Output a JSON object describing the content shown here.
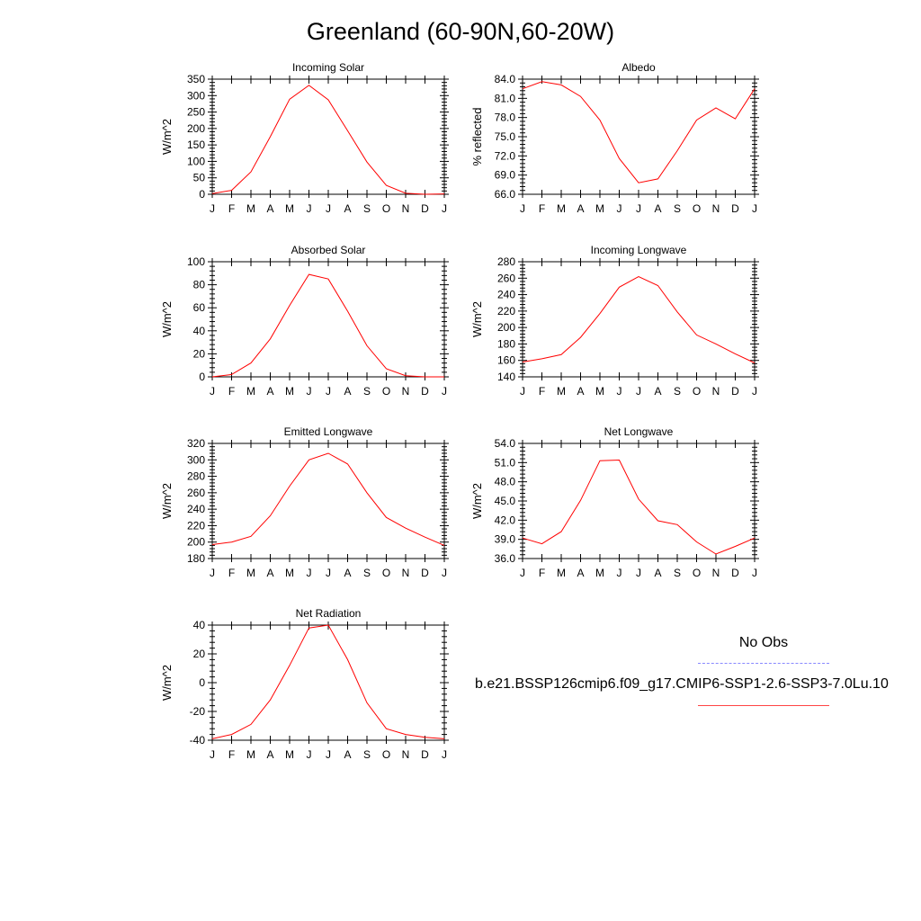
{
  "title": "Greenland (60-90N,60-20W)",
  "legend": {
    "obs_label": "No Obs",
    "case_label": "b.e21.BSSP126cmip6.f09_g17.CMIP6-SSP1-2.6-SSP3-7.0Lu.10",
    "obs_color": "#8888ff",
    "case_color": "#ff0000"
  },
  "chart_data": [
    {
      "type": "line",
      "title": "Incoming Solar",
      "ylabel": "W/m^2",
      "x": [
        "J",
        "F",
        "M",
        "A",
        "M",
        "J",
        "J",
        "A",
        "S",
        "O",
        "N",
        "D",
        "J"
      ],
      "ylim": [
        0,
        350
      ],
      "yticks": [
        0,
        50,
        100,
        150,
        200,
        250,
        300,
        350
      ],
      "ytick_labels": [
        "0",
        "50",
        "100",
        "150",
        "200",
        "250",
        "300",
        "350"
      ],
      "series": [
        {
          "values": [
            2,
            12,
            68,
            175,
            289,
            331,
            287,
            193,
            98,
            27,
            3,
            0,
            1
          ],
          "color": "#ff0000"
        }
      ]
    },
    {
      "type": "line",
      "title": "Albedo",
      "ylabel": "% reflected",
      "x": [
        "J",
        "F",
        "M",
        "A",
        "M",
        "J",
        "J",
        "A",
        "S",
        "O",
        "N",
        "D",
        "J"
      ],
      "ylim": [
        66,
        84
      ],
      "yticks": [
        66,
        69,
        72,
        75,
        78,
        81,
        84
      ],
      "ytick_labels": [
        "66.0",
        "69.0",
        "72.0",
        "75.0",
        "78.0",
        "81.0",
        "84.0"
      ],
      "series": [
        {
          "values": [
            82.5,
            83.6,
            83.1,
            81.3,
            77.6,
            71.6,
            67.8,
            68.4,
            72.8,
            77.6,
            79.5,
            77.8,
            82.5
          ],
          "color": "#ff0000"
        }
      ]
    },
    {
      "type": "line",
      "title": "Absorbed Solar",
      "ylabel": "W/m^2",
      "x": [
        "J",
        "F",
        "M",
        "A",
        "M",
        "J",
        "J",
        "A",
        "S",
        "O",
        "N",
        "D",
        "J"
      ],
      "ylim": [
        0,
        100
      ],
      "yticks": [
        0,
        20,
        40,
        60,
        80,
        100
      ],
      "ytick_labels": [
        "0",
        "20",
        "40",
        "60",
        "80",
        "100"
      ],
      "series": [
        {
          "values": [
            0,
            2,
            12,
            33,
            62,
            89,
            85,
            57,
            27,
            7,
            1,
            0,
            0
          ],
          "color": "#ff0000"
        }
      ]
    },
    {
      "type": "line",
      "title": "Incoming Longwave",
      "ylabel": "W/m^2",
      "x": [
        "J",
        "F",
        "M",
        "A",
        "M",
        "J",
        "J",
        "A",
        "S",
        "O",
        "N",
        "D",
        "J"
      ],
      "ylim": [
        140,
        280
      ],
      "yticks": [
        140,
        160,
        180,
        200,
        220,
        240,
        260,
        280
      ],
      "ytick_labels": [
        "140",
        "160",
        "180",
        "200",
        "220",
        "240",
        "260",
        "280"
      ],
      "series": [
        {
          "values": [
            158,
            162,
            167,
            188,
            217,
            249,
            262,
            251,
            219,
            191,
            180,
            168,
            157
          ],
          "color": "#ff0000"
        }
      ]
    },
    {
      "type": "line",
      "title": "Emitted Longwave",
      "ylabel": "W/m^2",
      "x": [
        "J",
        "F",
        "M",
        "A",
        "M",
        "J",
        "J",
        "A",
        "S",
        "O",
        "N",
        "D",
        "J"
      ],
      "ylim": [
        180,
        320
      ],
      "yticks": [
        180,
        200,
        220,
        240,
        260,
        280,
        300,
        320
      ],
      "ytick_labels": [
        "180",
        "200",
        "220",
        "240",
        "260",
        "280",
        "300",
        "320"
      ],
      "series": [
        {
          "values": [
            197,
            200,
            207,
            232,
            268,
            300,
            308,
            295,
            260,
            230,
            217,
            206,
            196
          ],
          "color": "#ff0000"
        }
      ]
    },
    {
      "type": "line",
      "title": "Net Longwave",
      "ylabel": "W/m^2",
      "x": [
        "J",
        "F",
        "M",
        "A",
        "M",
        "J",
        "J",
        "A",
        "S",
        "O",
        "N",
        "D",
        "J"
      ],
      "ylim": [
        36,
        54
      ],
      "yticks": [
        36,
        39,
        42,
        45,
        48,
        51,
        54
      ],
      "ytick_labels": [
        "36.0",
        "39.0",
        "42.0",
        "45.0",
        "48.0",
        "51.0",
        "54.0"
      ],
      "series": [
        {
          "values": [
            39.2,
            38.3,
            40.2,
            45.1,
            51.3,
            51.4,
            45.3,
            41.9,
            41.3,
            38.6,
            36.7,
            37.9,
            39.2
          ],
          "color": "#ff0000"
        }
      ]
    },
    {
      "type": "line",
      "title": "Net Radiation",
      "ylabel": "W/m^2",
      "x": [
        "J",
        "F",
        "M",
        "A",
        "M",
        "J",
        "J",
        "A",
        "S",
        "O",
        "N",
        "D",
        "J"
      ],
      "ylim": [
        -40,
        40
      ],
      "yticks": [
        -40,
        -20,
        0,
        20,
        40
      ],
      "ytick_labels": [
        "-40",
        "-20",
        "0",
        "20",
        "40"
      ],
      "series": [
        {
          "values": [
            -39,
            -36,
            -29,
            -12,
            12,
            38,
            40,
            16,
            -14,
            -32,
            -36,
            -38,
            -39
          ],
          "color": "#ff0000"
        }
      ]
    }
  ]
}
